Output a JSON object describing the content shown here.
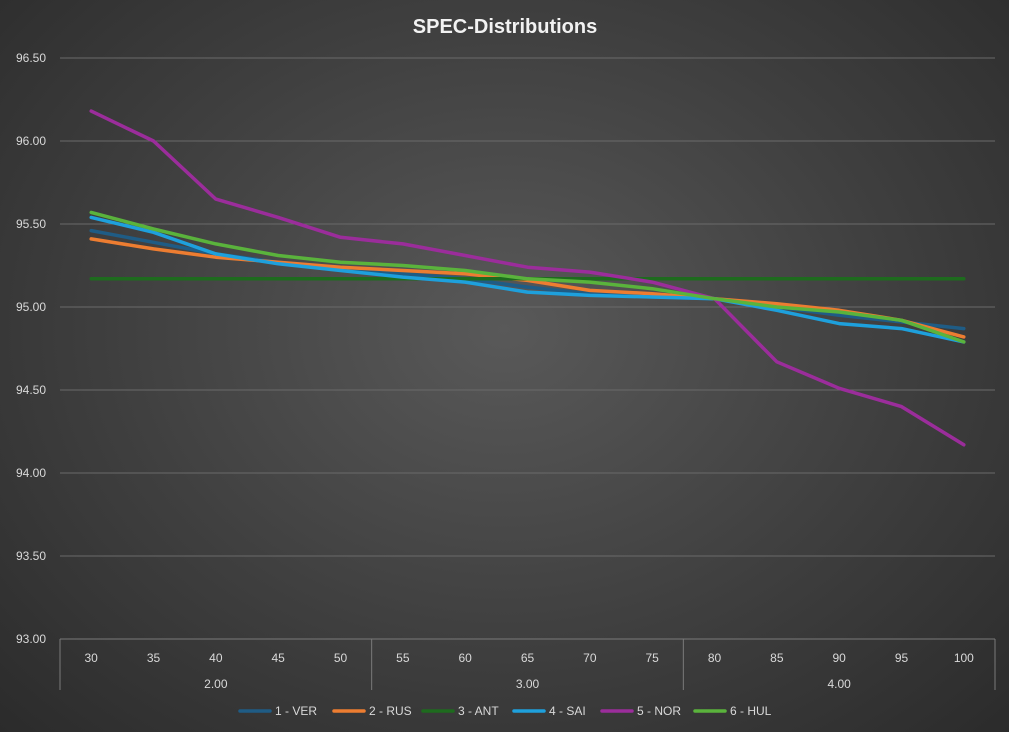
{
  "chart_data": {
    "type": "line",
    "title": "SPEC-Distributions",
    "x": [
      30,
      35,
      40,
      45,
      50,
      55,
      60,
      65,
      70,
      75,
      80,
      85,
      90,
      95,
      100
    ],
    "groups": [
      {
        "label": "2.00",
        "from": 0,
        "to": 4
      },
      {
        "label": "3.00",
        "from": 5,
        "to": 9
      },
      {
        "label": "4.00",
        "from": 10,
        "to": 14
      }
    ],
    "ylim": [
      93.0,
      96.5
    ],
    "yticks": [
      93.0,
      93.5,
      94.0,
      94.5,
      95.0,
      95.5,
      96.0,
      96.5
    ],
    "ytick_labels": [
      "93.00",
      "93.50",
      "94.00",
      "94.50",
      "95.00",
      "95.50",
      "96.00",
      "96.50"
    ],
    "grid": true,
    "legend_position": "bottom",
    "series": [
      {
        "name": "1 - VER",
        "color": "#1f5c85",
        "values": [
          95.46,
          95.39,
          95.32,
          95.27,
          95.23,
          95.2,
          95.17,
          95.12,
          95.08,
          95.06,
          95.05,
          95.0,
          94.95,
          94.91,
          94.87
        ]
      },
      {
        "name": "2 - RUS",
        "color": "#ed7d31",
        "values": [
          95.41,
          95.35,
          95.3,
          95.27,
          95.24,
          95.22,
          95.2,
          95.16,
          95.1,
          95.08,
          95.05,
          95.02,
          94.98,
          94.92,
          94.82
        ]
      },
      {
        "name": "3 - ANT",
        "color": "#1e6b1e",
        "values": [
          95.17,
          95.17,
          95.17,
          95.17,
          95.17,
          95.17,
          95.17,
          95.17,
          95.17,
          95.17,
          95.17,
          95.17,
          95.17,
          95.17,
          95.17
        ]
      },
      {
        "name": "4 - SAI",
        "color": "#1ea0dc",
        "values": [
          95.54,
          95.45,
          95.32,
          95.26,
          95.22,
          95.18,
          95.15,
          95.09,
          95.07,
          95.06,
          95.05,
          94.98,
          94.9,
          94.87,
          94.79
        ]
      },
      {
        "name": "5 - NOR",
        "color": "#9b2d9b",
        "values": [
          96.18,
          96.0,
          95.65,
          95.54,
          95.42,
          95.38,
          95.31,
          95.24,
          95.21,
          95.15,
          95.05,
          94.67,
          94.51,
          94.4,
          94.17
        ]
      },
      {
        "name": "6 - HUL",
        "color": "#5ab33c",
        "values": [
          95.57,
          95.47,
          95.38,
          95.31,
          95.27,
          95.25,
          95.22,
          95.17,
          95.15,
          95.11,
          95.05,
          95.0,
          94.97,
          94.92,
          94.79
        ]
      }
    ]
  }
}
